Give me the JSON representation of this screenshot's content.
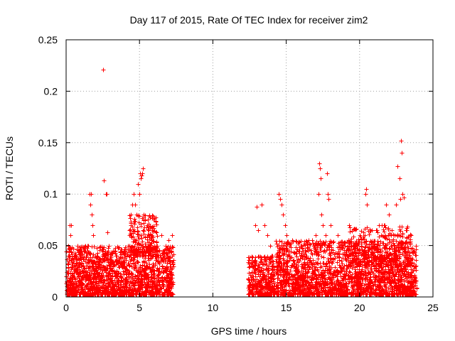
{
  "chart_data": {
    "type": "scatter",
    "title": "Day 117 of 2015, Rate Of TEC Index for receiver zim2",
    "xlabel": "GPS time / hours",
    "ylabel": "ROTI / TECUs",
    "xlim": [
      0,
      25
    ],
    "ylim": [
      0,
      0.25
    ],
    "xticks": [
      0,
      5,
      10,
      15,
      20,
      25
    ],
    "xtick_labels": [
      "0",
      "5",
      "10",
      "15",
      "20",
      "25"
    ],
    "yticks": [
      0,
      0.05,
      0.1,
      0.15,
      0.2,
      0.25
    ],
    "ytick_labels": [
      "0",
      "0.05",
      "0.1",
      "0.15",
      "0.2",
      "0.25"
    ],
    "grid": true,
    "marker": "+",
    "color": "#ff0000",
    "series": [
      {
        "name": "ROTI",
        "points": [
          [
            0.0,
            0.02
          ],
          [
            0.1,
            0.01
          ],
          [
            0.15,
            0.05
          ],
          [
            0.2,
            0.04
          ],
          [
            0.25,
            0.07
          ],
          [
            0.3,
            0.06
          ],
          [
            0.35,
            0.07
          ],
          [
            0.4,
            0.03
          ],
          [
            0.5,
            0.02
          ],
          [
            0.6,
            0.04
          ],
          [
            0.8,
            0.02
          ],
          [
            1.0,
            0.03
          ],
          [
            1.2,
            0.02
          ],
          [
            1.4,
            0.04
          ],
          [
            1.5,
            0.05
          ],
          [
            1.6,
            0.1
          ],
          [
            1.65,
            0.09
          ],
          [
            1.7,
            0.1
          ],
          [
            1.75,
            0.08
          ],
          [
            1.8,
            0.07
          ],
          [
            1.85,
            0.06
          ],
          [
            2.0,
            0.04
          ],
          [
            2.2,
            0.03
          ],
          [
            2.4,
            0.02
          ],
          [
            2.5,
            0.221
          ],
          [
            2.55,
            0.113
          ],
          [
            2.7,
            0.1
          ],
          [
            2.75,
            0.1
          ],
          [
            2.8,
            0.063
          ],
          [
            2.9,
            0.05
          ],
          [
            3.0,
            0.04
          ],
          [
            3.2,
            0.03
          ],
          [
            3.5,
            0.02
          ],
          [
            3.8,
            0.03
          ],
          [
            4.0,
            0.04
          ],
          [
            4.2,
            0.05
          ],
          [
            4.3,
            0.06
          ],
          [
            4.4,
            0.07
          ],
          [
            4.5,
            0.09
          ],
          [
            4.6,
            0.1
          ],
          [
            4.7,
            0.09
          ],
          [
            4.8,
            0.08
          ],
          [
            4.9,
            0.11
          ],
          [
            5.0,
            0.1
          ],
          [
            5.05,
            0.12
          ],
          [
            5.1,
            0.115
          ],
          [
            5.15,
            0.118
          ],
          [
            5.2,
            0.12
          ],
          [
            5.25,
            0.125
          ],
          [
            5.3,
            0.08
          ],
          [
            5.5,
            0.07
          ],
          [
            5.6,
            0.06
          ],
          [
            5.8,
            0.055
          ],
          [
            6.0,
            0.05
          ],
          [
            6.2,
            0.045
          ],
          [
            6.5,
            0.06
          ],
          [
            6.8,
            0.05
          ],
          [
            7.0,
            0.055
          ],
          [
            7.2,
            0.06
          ],
          [
            7.3,
            0.03
          ],
          [
            12.5,
            0.03
          ],
          [
            12.7,
            0.02
          ],
          [
            12.9,
            0.07
          ],
          [
            13.0,
            0.088
          ],
          [
            13.1,
            0.065
          ],
          [
            13.3,
            0.09
          ],
          [
            13.5,
            0.07
          ],
          [
            13.7,
            0.06
          ],
          [
            13.9,
            0.05
          ],
          [
            14.0,
            0.03
          ],
          [
            14.5,
            0.1
          ],
          [
            14.6,
            0.095
          ],
          [
            14.7,
            0.09
          ],
          [
            14.8,
            0.08
          ],
          [
            14.9,
            0.07
          ],
          [
            15.0,
            0.06
          ],
          [
            15.2,
            0.04
          ],
          [
            15.5,
            0.03
          ],
          [
            16.0,
            0.04
          ],
          [
            16.5,
            0.055
          ],
          [
            17.0,
            0.06
          ],
          [
            17.2,
            0.1
          ],
          [
            17.25,
            0.13
          ],
          [
            17.3,
            0.125
          ],
          [
            17.35,
            0.115
          ],
          [
            17.4,
            0.08
          ],
          [
            17.5,
            0.07
          ],
          [
            17.7,
            0.06
          ],
          [
            17.8,
            0.12
          ],
          [
            17.85,
            0.1
          ],
          [
            17.9,
            0.095
          ],
          [
            18.0,
            0.07
          ],
          [
            18.5,
            0.06
          ],
          [
            19.0,
            0.05
          ],
          [
            19.5,
            0.04
          ],
          [
            20.0,
            0.06
          ],
          [
            20.4,
            0.1
          ],
          [
            20.45,
            0.105
          ],
          [
            20.5,
            0.09
          ],
          [
            21.0,
            0.05
          ],
          [
            21.5,
            0.07
          ],
          [
            21.8,
            0.09
          ],
          [
            22.0,
            0.08
          ],
          [
            22.2,
            0.065
          ],
          [
            22.5,
            0.09
          ],
          [
            22.6,
            0.127
          ],
          [
            22.7,
            0.115
          ],
          [
            22.75,
            0.095
          ],
          [
            22.8,
            0.152
          ],
          [
            22.85,
            0.14
          ],
          [
            22.9,
            0.1
          ],
          [
            23.0,
            0.097
          ],
          [
            23.2,
            0.065
          ],
          [
            23.5,
            0.06
          ],
          [
            23.8,
            0.03
          ]
        ],
        "clusters": [
          {
            "x": [
              0.0,
              7.3
            ],
            "y": [
              0.0,
              0.05
            ],
            "count": 1700
          },
          {
            "x": [
              4.3,
              6.2
            ],
            "y": [
              0.04,
              0.08
            ],
            "count": 200
          },
          {
            "x": [
              12.4,
              14.2
            ],
            "y": [
              0.0,
              0.04
            ],
            "count": 380
          },
          {
            "x": [
              14.3,
              23.9
            ],
            "y": [
              0.0,
              0.055
            ],
            "count": 2200
          },
          {
            "x": [
              19.2,
              23.5
            ],
            "y": [
              0.03,
              0.07
            ],
            "count": 280
          }
        ]
      }
    ]
  }
}
